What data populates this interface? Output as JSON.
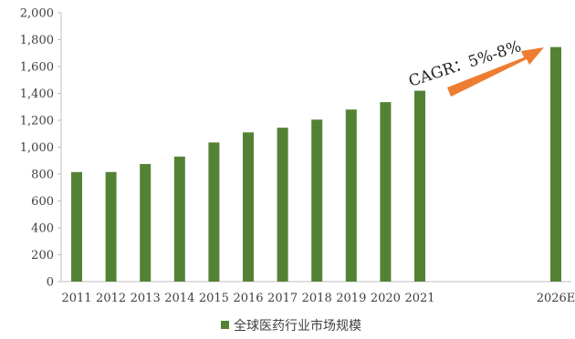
{
  "chart_data": {
    "type": "bar",
    "categories": [
      "2011",
      "2012",
      "2013",
      "2014",
      "2015",
      "2016",
      "2017",
      "2018",
      "2019",
      "2020",
      "2021",
      "2026E"
    ],
    "series": [
      {
        "name": "全球医药行业市场规模",
        "values": [
          815,
          815,
          875,
          930,
          1035,
          1110,
          1145,
          1205,
          1280,
          1335,
          1420,
          1745
        ],
        "color": "#548235"
      }
    ],
    "ylim": [
      0,
      2000
    ],
    "yticks": [
      0,
      200,
      400,
      600,
      800,
      1000,
      1200,
      1400,
      1600,
      1800,
      2000
    ],
    "ytick_labels": [
      "0",
      "200",
      "400",
      "600",
      "800",
      "1,000",
      "1,200",
      "1,400",
      "1,600",
      "1,800",
      "2,000"
    ],
    "xlabel": "",
    "ylabel": "",
    "title": "",
    "grid": false,
    "legend": {
      "position": "bottom",
      "label": "全球医药行业市场规模"
    },
    "annotation": {
      "text": "CAGR：5%-8%",
      "arrow_color": "#ed7d31"
    }
  }
}
